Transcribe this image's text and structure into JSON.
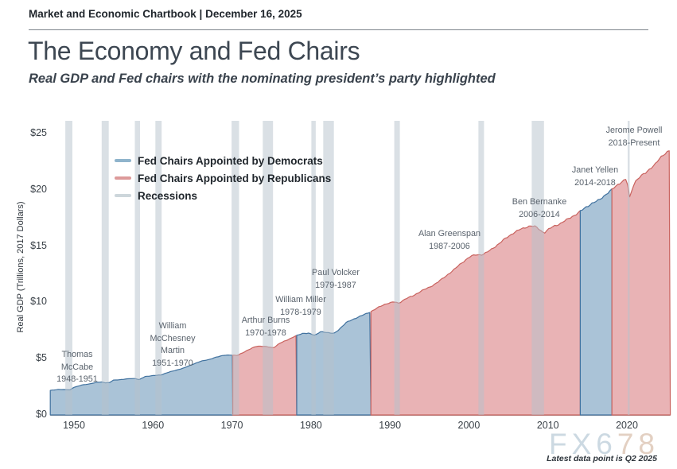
{
  "header": {
    "kicker": "Market and Economic Chartbook | December 16, 2025"
  },
  "title": "The Economy and Fed Chairs",
  "subtitle": "Real GDP and Fed chairs with the nominating president’s party highlighted",
  "watermark": {
    "blue_part": "FX6",
    "tan_part": "78"
  },
  "footnote": "Latest data point is Q2 2025",
  "colors": {
    "democrat_fill": "#aac3d7",
    "democrat_line": "#41729f",
    "republican_fill": "#e9b3b5",
    "republican_line": "#c9635f",
    "recession_band": "#b5c2cb",
    "legend_democrat": "#8fb4cc",
    "legend_republican": "#dd9a9a",
    "legend_recession": "#cdd6db",
    "axis_line": "#4a3c3a",
    "watermark_blue": "#ccd9e2",
    "watermark_tan": "#e3d0c2"
  },
  "chart_data": {
    "type": "area",
    "title": "The Economy and Fed Chairs",
    "ylabel": "Real GDP (Trillions, 2017 Dollars)",
    "xlabel": "",
    "x_range": [
      1947,
      2025.5
    ],
    "y_range": [
      0,
      26.1
    ],
    "x_ticks": [
      1950,
      1960,
      1970,
      1980,
      1990,
      2000,
      2010,
      2020
    ],
    "y_tick_values": [
      0,
      5,
      10,
      15,
      20,
      25
    ],
    "y_tick_labels": [
      "$0",
      "$5",
      "$10",
      "$15",
      "$20",
      "$25"
    ],
    "grid": false,
    "legend_position": "upper-left",
    "legend": [
      {
        "label": "Fed Chairs Appointed by Democrats",
        "party": "democrat"
      },
      {
        "label": "Fed Chairs Appointed by Republicans",
        "party": "republican"
      },
      {
        "label": "Recessions",
        "party": "recession"
      }
    ],
    "series_name": "Real GDP (Trillions, 2017 Dollars)",
    "gdp_series": [
      [
        1947,
        2.18
      ],
      [
        1948,
        2.27
      ],
      [
        1948.75,
        2.25
      ],
      [
        1949.5,
        2.23
      ],
      [
        1950,
        2.46
      ],
      [
        1950.75,
        2.6
      ],
      [
        1951,
        2.66
      ],
      [
        1952,
        2.77
      ],
      [
        1953,
        2.9
      ],
      [
        1953.5,
        2.93
      ],
      [
        1954,
        2.86
      ],
      [
        1954.5,
        2.88
      ],
      [
        1955,
        3.09
      ],
      [
        1956,
        3.15
      ],
      [
        1957,
        3.22
      ],
      [
        1957.75,
        3.24
      ],
      [
        1958.25,
        3.14
      ],
      [
        1959,
        3.41
      ],
      [
        1960,
        3.5
      ],
      [
        1960.5,
        3.52
      ],
      [
        1961,
        3.55
      ],
      [
        1962,
        3.81
      ],
      [
        1963,
        3.98
      ],
      [
        1964,
        4.21
      ],
      [
        1965,
        4.48
      ],
      [
        1966,
        4.77
      ],
      [
        1967,
        4.9
      ],
      [
        1968,
        5.14
      ],
      [
        1969,
        5.3
      ],
      [
        1969.75,
        5.33
      ],
      [
        1970.75,
        5.28
      ],
      [
        1971,
        5.4
      ],
      [
        1972,
        5.76
      ],
      [
        1973,
        6.08
      ],
      [
        1973.75,
        6.13
      ],
      [
        1974.5,
        6.05
      ],
      [
        1975.25,
        5.96
      ],
      [
        1976,
        6.36
      ],
      [
        1977,
        6.65
      ],
      [
        1978,
        7.02
      ],
      [
        1979,
        7.24
      ],
      [
        1979.75,
        7.28
      ],
      [
        1980.5,
        7.06
      ],
      [
        1981.25,
        7.42
      ],
      [
        1981.75,
        7.37
      ],
      [
        1982.25,
        7.29
      ],
      [
        1982.9,
        7.24
      ],
      [
        1983.5,
        7.56
      ],
      [
        1984.5,
        8.23
      ],
      [
        1985.5,
        8.55
      ],
      [
        1986.5,
        8.85
      ],
      [
        1987.5,
        9.15
      ],
      [
        1988.5,
        9.55
      ],
      [
        1989.5,
        9.88
      ],
      [
        1990.5,
        10.05
      ],
      [
        1991.1,
        9.93
      ],
      [
        1992,
        10.33
      ],
      [
        1993,
        10.61
      ],
      [
        1994,
        11.04
      ],
      [
        1995,
        11.34
      ],
      [
        1996,
        11.77
      ],
      [
        1997,
        12.3
      ],
      [
        1998,
        12.85
      ],
      [
        1999,
        13.46
      ],
      [
        2000,
        14.01
      ],
      [
        2000.75,
        14.23
      ],
      [
        2001.75,
        14.25
      ],
      [
        2002.5,
        14.55
      ],
      [
        2003.5,
        15.05
      ],
      [
        2004.5,
        15.62
      ],
      [
        2005.5,
        16.12
      ],
      [
        2006.5,
        16.5
      ],
      [
        2007.75,
        16.81
      ],
      [
        2008.5,
        16.72
      ],
      [
        2008.9,
        16.5
      ],
      [
        2009.5,
        16.17
      ],
      [
        2010,
        16.46
      ],
      [
        2010.75,
        16.78
      ],
      [
        2011.5,
        16.98
      ],
      [
        2012.5,
        17.4
      ],
      [
        2013.5,
        17.8
      ],
      [
        2014.5,
        18.3
      ],
      [
        2015.5,
        18.78
      ],
      [
        2016.5,
        19.1
      ],
      [
        2017.5,
        19.7
      ],
      [
        2018.5,
        20.25
      ],
      [
        2019.25,
        20.7
      ],
      [
        2019.9,
        20.98
      ],
      [
        2020.15,
        20.3
      ],
      [
        2020.4,
        19.05
      ],
      [
        2020.65,
        20.1
      ],
      [
        2021,
        20.7
      ],
      [
        2021.5,
        21.1
      ],
      [
        2022,
        21.35
      ],
      [
        2022.5,
        21.55
      ],
      [
        2023,
        21.95
      ],
      [
        2023.5,
        22.25
      ],
      [
        2024,
        22.65
      ],
      [
        2024.5,
        23.0
      ],
      [
        2025,
        23.35
      ],
      [
        2025.5,
        23.6
      ]
    ],
    "chair_eras": [
      {
        "chair": "Thomas McCabe",
        "tenure": "1948-1951",
        "party": "democrat",
        "start": 1947.0,
        "end": 1951.25,
        "name_lines": [
          "Thomas",
          "McCabe"
        ]
      },
      {
        "chair": "William McChesney Martin",
        "tenure": "1951-1970",
        "party": "democrat",
        "start": 1951.25,
        "end": 1970.1,
        "name_lines": [
          "William",
          "McChesney",
          "Martin"
        ]
      },
      {
        "chair": "Arthur Burns",
        "tenure": "1970-1978",
        "party": "republican",
        "start": 1970.1,
        "end": 1978.2,
        "name_lines": [
          "Arthur Burns"
        ]
      },
      {
        "chair": "William Miller",
        "tenure": "1978-1979",
        "party": "democrat",
        "start": 1978.2,
        "end": 1979.6,
        "name_lines": [
          "William Miller"
        ]
      },
      {
        "chair": "Paul Volcker",
        "tenure": "1979-1987",
        "party": "democrat",
        "start": 1979.6,
        "end": 1987.6,
        "name_lines": [
          "Paul Volcker"
        ]
      },
      {
        "chair": "Alan Greenspan",
        "tenure": "1987-2006",
        "party": "republican",
        "start": 1987.6,
        "end": 2006.1,
        "name_lines": [
          "Alan Greenspan"
        ]
      },
      {
        "chair": "Ben Bernanke",
        "tenure": "2006-2014",
        "party": "republican",
        "start": 2006.1,
        "end": 2014.1,
        "name_lines": [
          "Ben Bernanke"
        ]
      },
      {
        "chair": "Janet Yellen",
        "tenure": "2014-2018",
        "party": "democrat",
        "start": 2014.1,
        "end": 2018.1,
        "name_lines": [
          "Janet Yellen"
        ]
      },
      {
        "chair": "Jerome Powell",
        "tenure": "2018-Present",
        "party": "republican",
        "start": 2018.1,
        "end": 2025.5,
        "name_lines": [
          "Jerome Powell"
        ]
      }
    ],
    "recessions": [
      [
        1948.9,
        1949.8
      ],
      [
        1953.5,
        1954.4
      ],
      [
        1957.7,
        1958.35
      ],
      [
        1960.3,
        1961.1
      ],
      [
        1969.95,
        1970.9
      ],
      [
        1973.9,
        1975.2
      ],
      [
        1980.05,
        1980.6
      ],
      [
        1981.55,
        1982.9
      ],
      [
        1990.55,
        1991.25
      ],
      [
        2001.2,
        2001.9
      ],
      [
        2007.95,
        2009.5
      ],
      [
        2020.1,
        2020.35
      ]
    ]
  }
}
